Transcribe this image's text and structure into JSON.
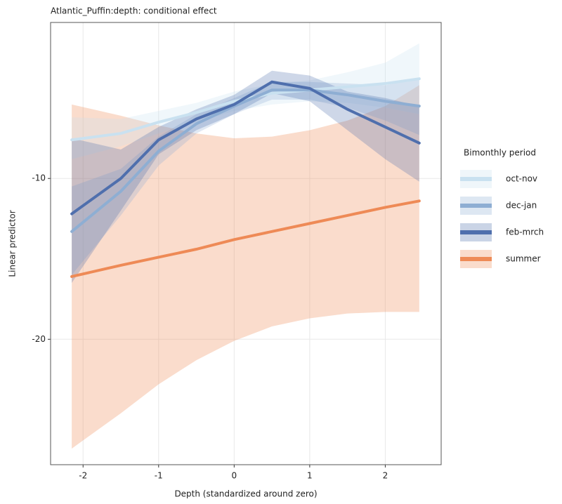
{
  "chart_data": {
    "type": "line",
    "title": "Atlantic_Puffin:depth: conditional effect",
    "x_label": "Depth (standardized around zero)",
    "y_label": "Linear predictor",
    "legend_title": "Bimonthly period",
    "legend_position": "right",
    "grid": true,
    "x": [
      -2.15,
      -1.5,
      -1,
      -0.5,
      0,
      0.5,
      1,
      1.5,
      2,
      2.45
    ],
    "xlim": [
      -2.43,
      2.74
    ],
    "xticks": [
      -2,
      -1,
      0,
      1,
      2
    ],
    "ylim": [
      -27.8,
      -0.3
    ],
    "yticks": [
      -20,
      -10
    ],
    "series": [
      {
        "name": "oct-nov",
        "color": "#c9e1f0",
        "values": [
          -7.6,
          -7.2,
          -6.5,
          -5.9,
          -5.2,
          -4.7,
          -4.5,
          -4.3,
          -4.1,
          -3.8
        ],
        "lower": [
          -8.8,
          -8.0,
          -7.2,
          -6.5,
          -5.8,
          -5.4,
          -5.2,
          -5.3,
          -5.6,
          -6.0
        ],
        "upper": [
          -6.2,
          -6.3,
          -5.8,
          -5.3,
          -4.6,
          -4.1,
          -3.9,
          -3.4,
          -2.8,
          -1.6
        ]
      },
      {
        "name": "dec-jan",
        "color": "#8eaed3",
        "values": [
          -13.3,
          -10.8,
          -8.3,
          -6.6,
          -5.5,
          -4.5,
          -4.5,
          -4.8,
          -5.2,
          -5.5
        ],
        "lower": [
          -16.0,
          -12.3,
          -9.2,
          -7.2,
          -6.0,
          -5.1,
          -5.1,
          -5.6,
          -6.4,
          -7.3
        ],
        "upper": [
          -10.5,
          -9.4,
          -7.4,
          -6.0,
          -5.0,
          -4.0,
          -4.0,
          -4.1,
          -4.2,
          -3.8
        ]
      },
      {
        "name": "feb-mrch",
        "color": "#4f6fad",
        "values": [
          -12.2,
          -10.0,
          -7.6,
          -6.3,
          -5.4,
          -4.0,
          -4.4,
          -5.7,
          -6.8,
          -7.8
        ],
        "lower": [
          -16.5,
          -12.0,
          -8.5,
          -7.0,
          -6.0,
          -4.7,
          -5.2,
          -7.0,
          -8.8,
          -10.2
        ],
        "upper": [
          -7.5,
          -8.2,
          -6.8,
          -5.7,
          -4.8,
          -3.3,
          -3.6,
          -4.6,
          -5.0,
          -5.5
        ]
      },
      {
        "name": "summer",
        "color": "#ee8a56",
        "values": [
          -16.1,
          -15.4,
          -14.9,
          -14.4,
          -13.8,
          -13.3,
          -12.8,
          -12.3,
          -11.8,
          -11.4
        ],
        "lower": [
          -26.8,
          -24.6,
          -22.8,
          -21.3,
          -20.1,
          -19.2,
          -18.7,
          -18.4,
          -18.3,
          -18.3
        ],
        "upper": [
          -5.4,
          -6.1,
          -6.7,
          -7.2,
          -7.5,
          -7.4,
          -7.0,
          -6.4,
          -5.5,
          -4.2
        ]
      }
    ]
  }
}
